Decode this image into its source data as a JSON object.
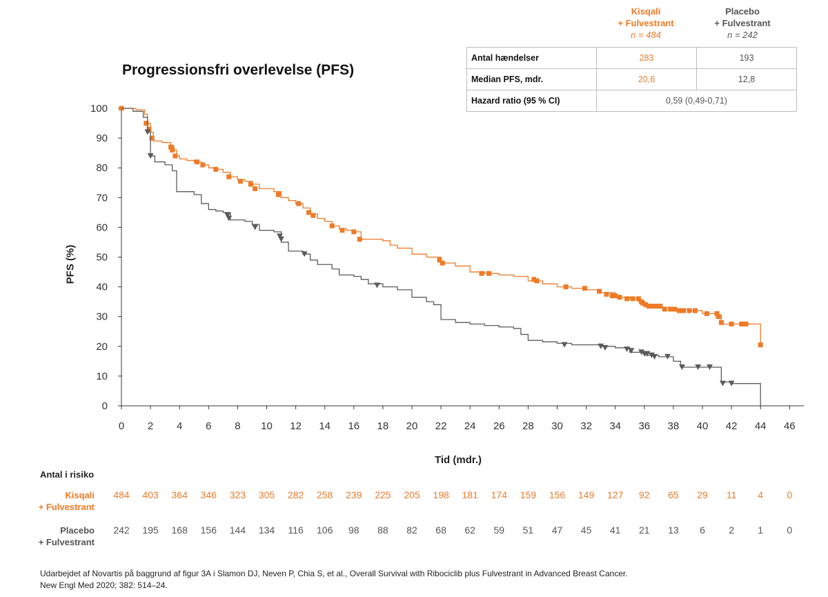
{
  "chart_data": {
    "type": "line",
    "title": "Progressionsfri overlevelse (PFS)",
    "xlabel": "Tid (mdr.)",
    "ylabel": "PFS (%)",
    "xlim": [
      0,
      47
    ],
    "ylim": [
      0,
      100
    ],
    "x_ticks": [
      0,
      2,
      4,
      6,
      8,
      10,
      12,
      14,
      16,
      18,
      20,
      22,
      24,
      26,
      28,
      30,
      32,
      34,
      36,
      38,
      40,
      42,
      44,
      46
    ],
    "y_ticks": [
      0,
      10,
      20,
      30,
      40,
      50,
      60,
      70,
      80,
      90,
      100
    ],
    "series": [
      {
        "name": "Kisqali + Fulvestrant",
        "color": "#ee7a27",
        "marker": "square",
        "points": [
          [
            0,
            100
          ],
          [
            1.0,
            99.5
          ],
          [
            1.6,
            98
          ],
          [
            1.8,
            95
          ],
          [
            2.0,
            92
          ],
          [
            2.2,
            89
          ],
          [
            2.8,
            88.5
          ],
          [
            3.4,
            87.5
          ],
          [
            3.6,
            86
          ],
          [
            3.8,
            84
          ],
          [
            4.0,
            83
          ],
          [
            4.5,
            82.5
          ],
          [
            5.0,
            82
          ],
          [
            5.5,
            81
          ],
          [
            6.0,
            80
          ],
          [
            6.5,
            79.5
          ],
          [
            7.0,
            78.5
          ],
          [
            7.5,
            77
          ],
          [
            8.0,
            76
          ],
          [
            8.5,
            75.5
          ],
          [
            9.0,
            74.5
          ],
          [
            9.5,
            73
          ],
          [
            10.0,
            73
          ],
          [
            10.5,
            72
          ],
          [
            11.0,
            70
          ],
          [
            11.5,
            69
          ],
          [
            12.0,
            68
          ],
          [
            12.5,
            66.5
          ],
          [
            13.0,
            64.5
          ],
          [
            13.5,
            63
          ],
          [
            14.0,
            62
          ],
          [
            14.5,
            60.5
          ],
          [
            15.0,
            59.5
          ],
          [
            15.5,
            59
          ],
          [
            16.0,
            58.5
          ],
          [
            16.5,
            56
          ],
          [
            17.0,
            56
          ],
          [
            18.0,
            55.5
          ],
          [
            18.5,
            54
          ],
          [
            19.0,
            53
          ],
          [
            20.0,
            51
          ],
          [
            21.0,
            50
          ],
          [
            22.0,
            48
          ],
          [
            23.0,
            47
          ],
          [
            24.0,
            45
          ],
          [
            25.0,
            44.5
          ],
          [
            26.0,
            44
          ],
          [
            27.0,
            43.5
          ],
          [
            28.0,
            42
          ],
          [
            29.0,
            41
          ],
          [
            30.0,
            40
          ],
          [
            31.0,
            39.5
          ],
          [
            32.0,
            39
          ],
          [
            33.0,
            38
          ],
          [
            34.0,
            36.5
          ],
          [
            35.0,
            36
          ],
          [
            35.6,
            35
          ],
          [
            36.0,
            33.5
          ],
          [
            37.0,
            33
          ],
          [
            38.0,
            32.5
          ],
          [
            39.0,
            32
          ],
          [
            40.0,
            31
          ],
          [
            41.0,
            30.5
          ],
          [
            41.3,
            27.5
          ],
          [
            42.0,
            27.5
          ],
          [
            43.0,
            27.5
          ],
          [
            44.0,
            27.5
          ],
          [
            44.0,
            20.5
          ]
        ],
        "censor": [
          [
            0,
            100
          ],
          [
            1.7,
            95
          ],
          [
            1.9,
            93
          ],
          [
            2.1,
            90
          ],
          [
            3.4,
            87
          ],
          [
            3.5,
            86
          ],
          [
            3.7,
            84
          ],
          [
            5.2,
            82
          ],
          [
            5.6,
            81
          ],
          [
            6.5,
            79.5
          ],
          [
            7.4,
            77
          ],
          [
            8.2,
            75.5
          ],
          [
            8.9,
            74.5
          ],
          [
            9.2,
            73
          ],
          [
            10.8,
            71
          ],
          [
            12.2,
            68
          ],
          [
            12.9,
            65
          ],
          [
            13.2,
            64
          ],
          [
            14.5,
            60.5
          ],
          [
            15.2,
            59
          ],
          [
            16.0,
            58.5
          ],
          [
            16.4,
            56
          ],
          [
            21.9,
            49
          ],
          [
            22.1,
            48
          ],
          [
            24.8,
            44.5
          ],
          [
            25.3,
            44.5
          ],
          [
            28.4,
            42.5
          ],
          [
            28.6,
            42
          ],
          [
            30.6,
            40
          ],
          [
            31.9,
            39.5
          ],
          [
            32.9,
            38.5
          ],
          [
            33.4,
            37.5
          ],
          [
            33.8,
            37
          ],
          [
            34.0,
            37
          ],
          [
            34.3,
            36.5
          ],
          [
            34.8,
            36
          ],
          [
            35.2,
            36
          ],
          [
            35.6,
            36
          ],
          [
            35.8,
            35
          ],
          [
            35.9,
            34.5
          ],
          [
            36.1,
            34
          ],
          [
            36.3,
            33.5
          ],
          [
            36.6,
            33.5
          ],
          [
            36.8,
            33.5
          ],
          [
            37.1,
            33.5
          ],
          [
            37.4,
            32.5
          ],
          [
            37.8,
            32.5
          ],
          [
            38.1,
            32.5
          ],
          [
            38.4,
            32
          ],
          [
            38.7,
            32
          ],
          [
            39.1,
            32
          ],
          [
            39.5,
            32
          ],
          [
            40.3,
            31
          ],
          [
            41.0,
            31
          ],
          [
            41.1,
            30
          ],
          [
            41.3,
            28
          ],
          [
            42.0,
            27.5
          ],
          [
            42.7,
            27.5
          ],
          [
            43.0,
            27.5
          ],
          [
            44.0,
            20.5
          ]
        ]
      },
      {
        "name": "Placebo + Fulvestrant",
        "color": "#5b5b5b",
        "marker": "triangle-down",
        "points": [
          [
            0,
            100
          ],
          [
            0.8,
            99
          ],
          [
            1.5,
            97
          ],
          [
            1.8,
            92
          ],
          [
            2.0,
            84
          ],
          [
            2.3,
            82
          ],
          [
            3.0,
            81
          ],
          [
            3.5,
            79
          ],
          [
            3.8,
            72
          ],
          [
            4.5,
            72
          ],
          [
            5.0,
            71
          ],
          [
            5.5,
            68
          ],
          [
            6.0,
            66
          ],
          [
            6.5,
            65.5
          ],
          [
            7.0,
            65
          ],
          [
            7.5,
            62.5
          ],
          [
            8.5,
            62
          ],
          [
            9.0,
            61
          ],
          [
            9.5,
            59
          ],
          [
            10.5,
            58.5
          ],
          [
            11.0,
            55
          ],
          [
            11.5,
            52
          ],
          [
            12.5,
            51
          ],
          [
            13.0,
            49
          ],
          [
            13.5,
            47.5
          ],
          [
            14.5,
            46
          ],
          [
            15.0,
            44
          ],
          [
            16.0,
            43.5
          ],
          [
            16.5,
            42.5
          ],
          [
            17.0,
            41
          ],
          [
            18.0,
            40
          ],
          [
            19.0,
            39
          ],
          [
            20.0,
            36.5
          ],
          [
            21.0,
            35
          ],
          [
            21.5,
            34
          ],
          [
            22.0,
            29
          ],
          [
            23.0,
            28
          ],
          [
            24.0,
            27.5
          ],
          [
            25.0,
            27
          ],
          [
            26.0,
            26.5
          ],
          [
            27.0,
            26
          ],
          [
            27.5,
            24
          ],
          [
            28.0,
            22
          ],
          [
            29.0,
            21.5
          ],
          [
            30.0,
            21
          ],
          [
            31.0,
            20.5
          ],
          [
            32.0,
            20.5
          ],
          [
            33.0,
            20
          ],
          [
            34.0,
            19.5
          ],
          [
            35.0,
            18
          ],
          [
            36.0,
            17
          ],
          [
            37.0,
            16.5
          ],
          [
            38.0,
            15
          ],
          [
            38.5,
            13
          ],
          [
            39.0,
            13
          ],
          [
            40.0,
            13
          ],
          [
            41.0,
            13
          ],
          [
            41.3,
            8
          ],
          [
            42.0,
            7.5
          ],
          [
            43.0,
            7.5
          ],
          [
            44.0,
            7.5
          ],
          [
            44.0,
            0
          ]
        ],
        "censor": [
          [
            1.8,
            92
          ],
          [
            2.0,
            84
          ],
          [
            7.3,
            64
          ],
          [
            7.4,
            63
          ],
          [
            9.2,
            60
          ],
          [
            10.9,
            57
          ],
          [
            11.0,
            56
          ],
          [
            12.6,
            51
          ],
          [
            17.6,
            40.5
          ],
          [
            30.5,
            20.5
          ],
          [
            33.0,
            20
          ],
          [
            33.3,
            19.5
          ],
          [
            34.8,
            19
          ],
          [
            35.1,
            18.5
          ],
          [
            35.8,
            18
          ],
          [
            36.0,
            17.5
          ],
          [
            36.2,
            17.5
          ],
          [
            36.5,
            17
          ],
          [
            36.7,
            16.5
          ],
          [
            37.6,
            16.5
          ],
          [
            38.6,
            13
          ],
          [
            39.7,
            13
          ],
          [
            40.5,
            13
          ],
          [
            41.4,
            7.5
          ],
          [
            42.0,
            7.5
          ]
        ]
      }
    ],
    "legend": [
      {
        "name": "Kisqali",
        "sub": "+ Fulvestrant",
        "n": "n = 484",
        "color": "#ee7a27"
      },
      {
        "name": "Placebo",
        "sub": "+ Fulvestrant",
        "n": "n = 242",
        "color": "#555555"
      }
    ],
    "stats_table": {
      "rows": [
        {
          "label": "Antal hændelser",
          "kisqali": "283",
          "placebo": "193"
        },
        {
          "label": "Median PFS, mdr.",
          "kisqali": "20,6",
          "placebo": "12,8"
        },
        {
          "label": "Hazard ratio (95 % CI)",
          "combined": "0,59 (0,49-0,71)"
        }
      ]
    },
    "at_risk": {
      "title": "Antal i risiko",
      "times": [
        0,
        2,
        4,
        6,
        8,
        10,
        12,
        14,
        16,
        18,
        20,
        22,
        24,
        26,
        28,
        30,
        32,
        34,
        36,
        38,
        40,
        42,
        44,
        46
      ],
      "rows": [
        {
          "label1": "Kisqali",
          "label2": "+ Fulvestrant",
          "color": "#ee7a27",
          "values": [
            "484",
            "403",
            "364",
            "346",
            "323",
            "305",
            "282",
            "258",
            "239",
            "225",
            "205",
            "198",
            "181",
            "174",
            "159",
            "156",
            "149",
            "127",
            "92",
            "65",
            "29",
            "11",
            "4",
            "0"
          ]
        },
        {
          "label1": "Placebo",
          "label2": "+ Fulvestrant",
          "color": "#555555",
          "values": [
            "242",
            "195",
            "168",
            "156",
            "144",
            "134",
            "116",
            "106",
            "98",
            "88",
            "82",
            "68",
            "62",
            "59",
            "51",
            "47",
            "45",
            "41",
            "21",
            "13",
            "6",
            "2",
            "1",
            "0"
          ]
        }
      ]
    }
  },
  "source_text_1": "Udarbejdet af Novartis på baggrund af figur 3A i Slamon DJ, Neven P, Chia S, et al., Overall Survival with Ribociclib plus Fulvestrant in Advanced Breast Cancer.",
  "source_text_2": "New Engl Med 2020; 382: 514–24."
}
